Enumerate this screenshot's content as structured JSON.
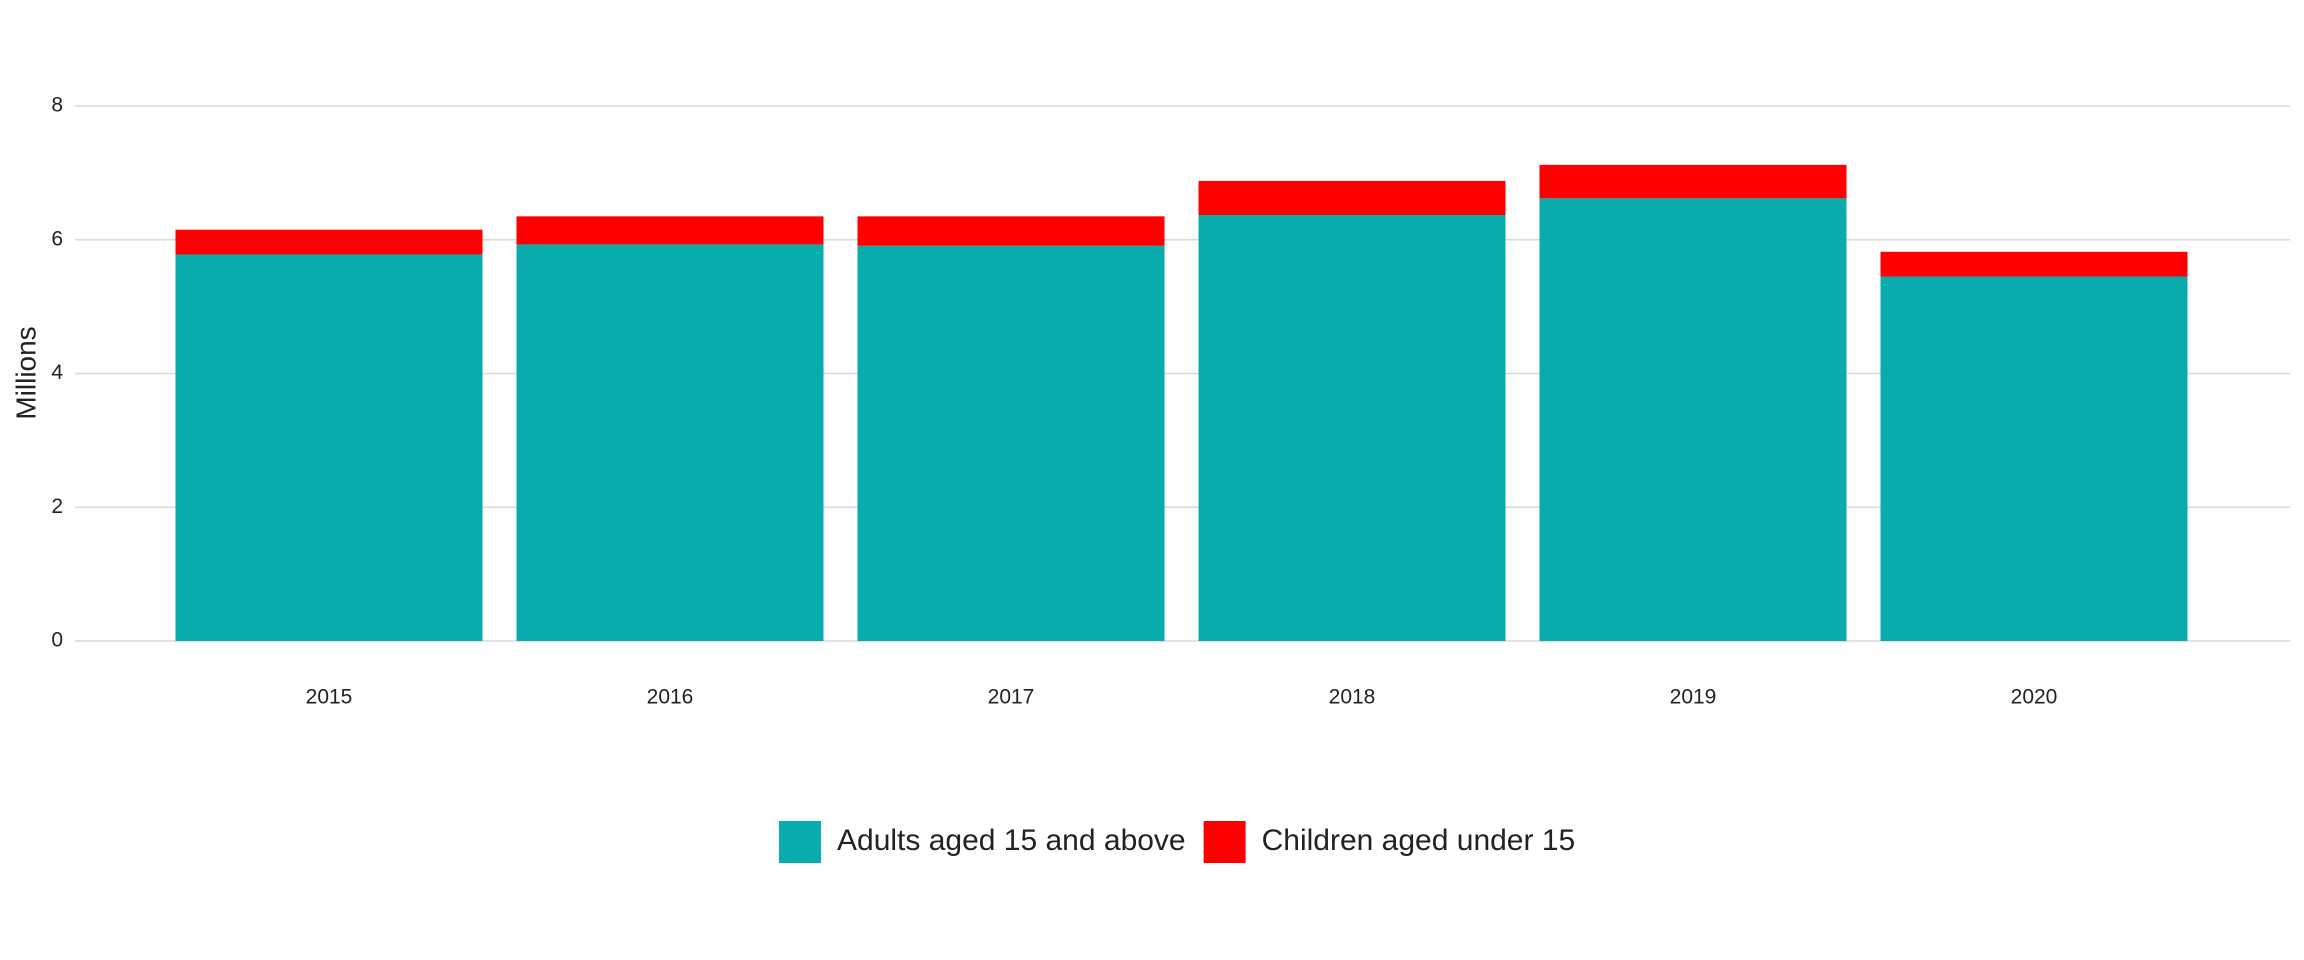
{
  "chart_data": {
    "type": "stacked_bar",
    "ylabel": "Millions",
    "categories": [
      "2015",
      "2016",
      "2017",
      "2018",
      "2019",
      "2020"
    ],
    "series": [
      {
        "name": "Adults aged 15 and above",
        "color": "#0aabac",
        "values": [
          5.78,
          5.93,
          5.91,
          6.37,
          6.62,
          5.45
        ]
      },
      {
        "name": "Children aged under 15",
        "color": "#ff0000",
        "values": [
          0.37,
          0.42,
          0.44,
          0.51,
          0.5,
          0.37
        ]
      }
    ],
    "ylim": [
      0,
      8
    ],
    "yticks": [
      0,
      2,
      4,
      6,
      8
    ],
    "grid": true,
    "legend": "bottom"
  }
}
